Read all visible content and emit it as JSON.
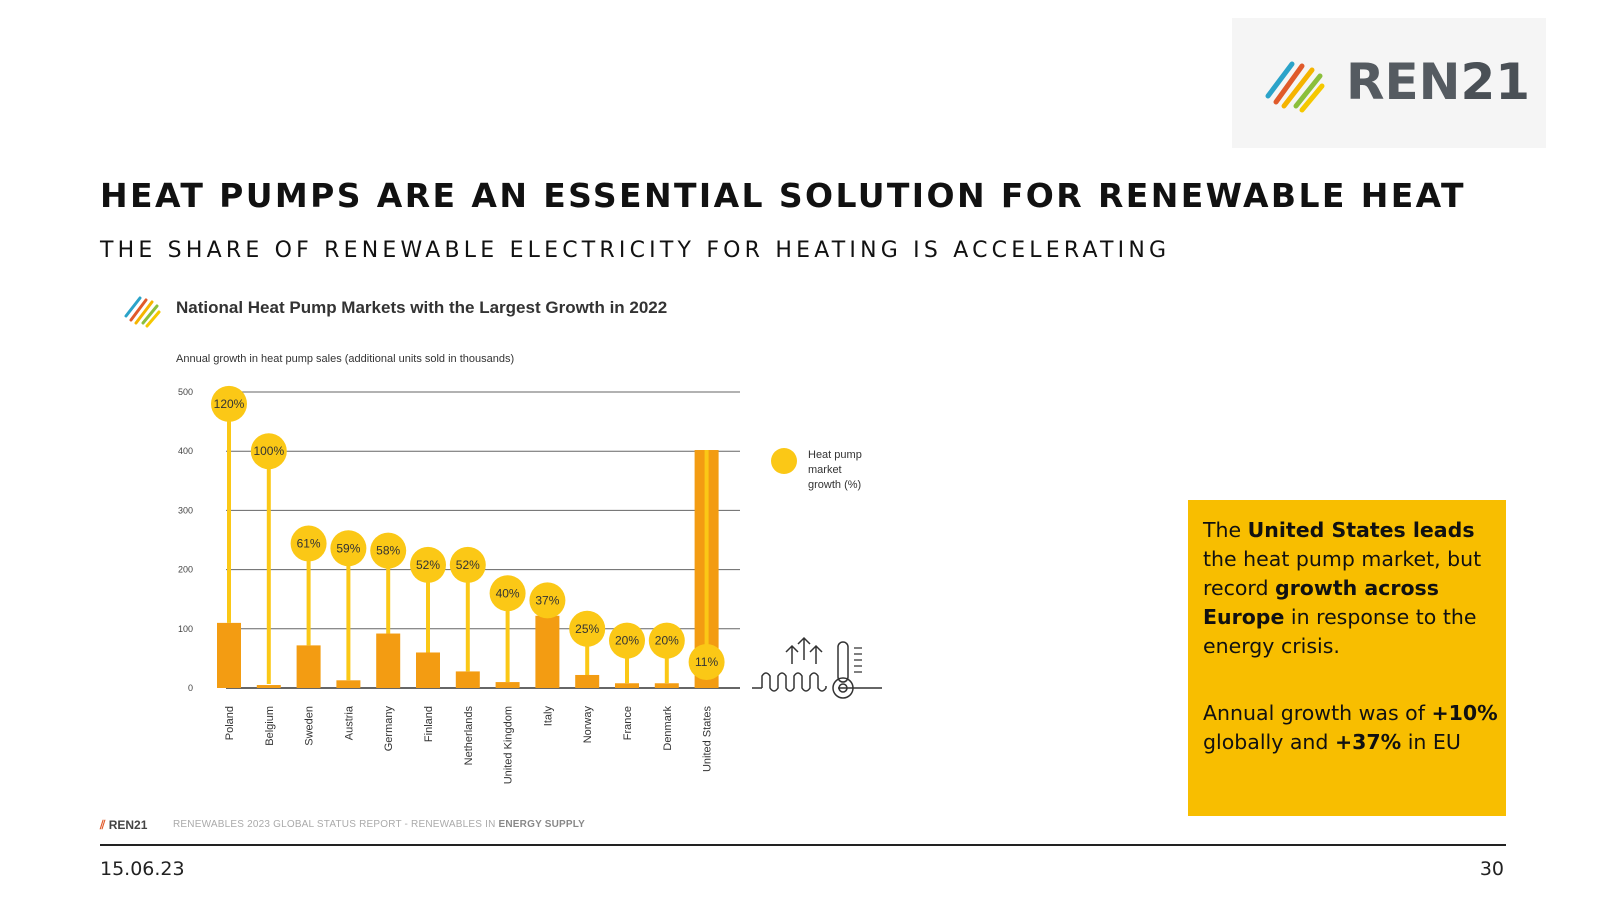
{
  "logo": {
    "brand": "REN",
    "brand_num": "21"
  },
  "slide": {
    "title": "HEAT PUMPS ARE AN ESSENTIAL SOLUTION FOR RENEWABLE HEAT",
    "subtitle": "THE SHARE OF RENEWABLE ELECTRICITY FOR HEATING IS ACCELERATING"
  },
  "info": {
    "p1": [
      {
        "t": "The ",
        "b": false
      },
      {
        "t": "United States leads",
        "b": true
      },
      {
        "t": " the heat pump market, but record ",
        "b": false
      },
      {
        "t": "growth across Europe",
        "b": true
      },
      {
        "t": " in response to the energy crisis.",
        "b": false
      }
    ],
    "p2": [
      {
        "t": "Annual growth was of ",
        "b": false
      },
      {
        "t": "+10%",
        "b": true
      },
      {
        "t": " globally and ",
        "b": false
      },
      {
        "t": "+37%",
        "b": true
      },
      {
        "t": " in EU",
        "b": false
      }
    ]
  },
  "footer": {
    "logo_text": "REN21",
    "source_prefix": "RENEWABLES 2023 GLOBAL STATUS REPORT - RENEWABLES IN ",
    "source_bold": "ENERGY SUPPLY",
    "date": "15.06.23",
    "page": "30"
  },
  "colors": {
    "bar": "#f39c12",
    "bubble": "#fbc816",
    "info_box": "#f8be00",
    "grid": "#555555"
  },
  "chart_data": {
    "type": "bar",
    "title": "National Heat Pump Markets with the Largest Growth in 2022",
    "ylabel": "Annual growth in heat pump sales (additional units sold in thousands)",
    "ylim": [
      0,
      500
    ],
    "yticks": [
      0,
      100,
      200,
      300,
      400,
      500
    ],
    "categories": [
      "Poland",
      "Belgium",
      "Sweden",
      "Austria",
      "Germany",
      "Finland",
      "Netherlands",
      "United Kingdom",
      "Italy",
      "Norway",
      "France",
      "Denmark",
      "United States"
    ],
    "series": [
      {
        "values": [
          110,
          5,
          72,
          13,
          92,
          60,
          28,
          10,
          122,
          22,
          8,
          8,
          402
        ]
      },
      {
        "name": "Heat pump market growth (%)",
        "values": [
          120,
          100,
          61,
          59,
          58,
          52,
          52,
          40,
          37,
          25,
          20,
          20,
          11
        ],
        "labels": [
          "120%",
          "100%",
          "61%",
          "59%",
          "58%",
          "52%",
          "52%",
          "40%",
          "37%",
          "25%",
          "20%",
          "20%",
          "11%"
        ]
      }
    ],
    "legend": {
      "position": "right",
      "label": "Heat pump market growth (%)"
    },
    "grid": true
  }
}
